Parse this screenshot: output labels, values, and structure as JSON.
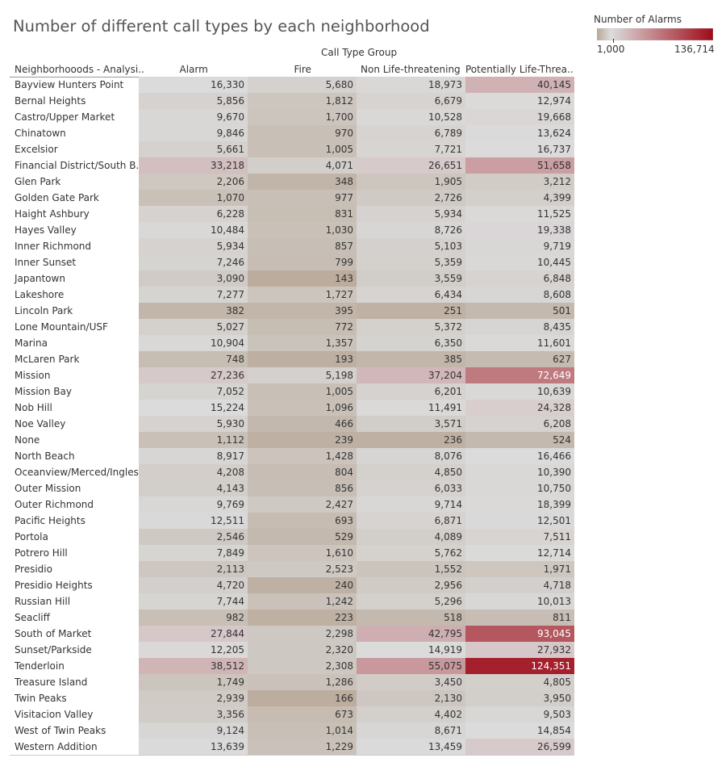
{
  "chart_data": {
    "type": "heatmap",
    "title": "Number of different call types by each neighborhood",
    "column_group_label": "Call Type Group",
    "row_header_label": "Neighborhooods - Analysi..",
    "columns": [
      "Alarm",
      "Fire",
      "Non Life-threatening",
      "Potentially Life-Threa.."
    ],
    "legend": {
      "title": "Number of Alarms",
      "min_label": "1,000",
      "max_label": "136,714",
      "min": 1000,
      "max": 136714,
      "colors": [
        "#b8a898",
        "#dcdcdc",
        "#9e0b18"
      ]
    },
    "rows": [
      {
        "name": "Bayview Hunters Point",
        "values": [
          16330,
          5680,
          18973,
          40145
        ]
      },
      {
        "name": "Bernal Heights",
        "values": [
          5856,
          1812,
          6679,
          12974
        ]
      },
      {
        "name": "Castro/Upper Market",
        "values": [
          9670,
          1700,
          10528,
          19668
        ]
      },
      {
        "name": "Chinatown",
        "values": [
          9846,
          970,
          6789,
          13624
        ]
      },
      {
        "name": "Excelsior",
        "values": [
          5661,
          1005,
          7721,
          16737
        ]
      },
      {
        "name": "Financial District/South B..",
        "values": [
          33218,
          4071,
          26651,
          51658
        ]
      },
      {
        "name": "Glen Park",
        "values": [
          2206,
          348,
          1905,
          3212
        ]
      },
      {
        "name": "Golden Gate Park",
        "values": [
          1070,
          977,
          2726,
          4399
        ]
      },
      {
        "name": "Haight Ashbury",
        "values": [
          6228,
          831,
          5934,
          11525
        ]
      },
      {
        "name": "Hayes Valley",
        "values": [
          10484,
          1030,
          8726,
          19338
        ]
      },
      {
        "name": "Inner Richmond",
        "values": [
          5934,
          857,
          5103,
          9719
        ]
      },
      {
        "name": "Inner Sunset",
        "values": [
          7246,
          799,
          5359,
          10445
        ]
      },
      {
        "name": "Japantown",
        "values": [
          3090,
          143,
          3559,
          6848
        ]
      },
      {
        "name": "Lakeshore",
        "values": [
          7277,
          1727,
          6434,
          8608
        ]
      },
      {
        "name": "Lincoln Park",
        "values": [
          382,
          395,
          251,
          501
        ]
      },
      {
        "name": "Lone Mountain/USF",
        "values": [
          5027,
          772,
          5372,
          8435
        ]
      },
      {
        "name": "Marina",
        "values": [
          10904,
          1357,
          6350,
          11601
        ]
      },
      {
        "name": "McLaren Park",
        "values": [
          748,
          193,
          385,
          627
        ]
      },
      {
        "name": "Mission",
        "values": [
          27236,
          5198,
          37204,
          72649
        ]
      },
      {
        "name": "Mission Bay",
        "values": [
          7052,
          1005,
          6201,
          10639
        ]
      },
      {
        "name": "Nob Hill",
        "values": [
          15224,
          1096,
          11491,
          24328
        ]
      },
      {
        "name": "Noe Valley",
        "values": [
          5930,
          466,
          3571,
          6208
        ]
      },
      {
        "name": "None",
        "values": [
          1112,
          239,
          236,
          524
        ]
      },
      {
        "name": "North Beach",
        "values": [
          8917,
          1428,
          8076,
          16466
        ]
      },
      {
        "name": "Oceanview/Merced/Ingles..",
        "values": [
          4208,
          804,
          4850,
          10390
        ]
      },
      {
        "name": "Outer Mission",
        "values": [
          4143,
          856,
          6033,
          10750
        ]
      },
      {
        "name": "Outer Richmond",
        "values": [
          9769,
          2427,
          9714,
          18399
        ]
      },
      {
        "name": "Pacific Heights",
        "values": [
          12511,
          693,
          6871,
          12501
        ]
      },
      {
        "name": "Portola",
        "values": [
          2546,
          529,
          4089,
          7511
        ]
      },
      {
        "name": "Potrero Hill",
        "values": [
          7849,
          1610,
          5762,
          12714
        ]
      },
      {
        "name": "Presidio",
        "values": [
          2113,
          2523,
          1552,
          1971
        ]
      },
      {
        "name": "Presidio Heights",
        "values": [
          4720,
          240,
          2956,
          4718
        ]
      },
      {
        "name": "Russian Hill",
        "values": [
          7744,
          1242,
          5296,
          10013
        ]
      },
      {
        "name": "Seacliff",
        "values": [
          982,
          223,
          518,
          811
        ]
      },
      {
        "name": "South of Market",
        "values": [
          27844,
          2298,
          42795,
          93045
        ]
      },
      {
        "name": "Sunset/Parkside",
        "values": [
          12205,
          2320,
          14919,
          27932
        ]
      },
      {
        "name": "Tenderloin",
        "values": [
          38512,
          2308,
          55075,
          124351
        ]
      },
      {
        "name": "Treasure Island",
        "values": [
          1749,
          1286,
          3450,
          4805
        ]
      },
      {
        "name": "Twin Peaks",
        "values": [
          2939,
          166,
          2130,
          3950
        ]
      },
      {
        "name": "Visitacion Valley",
        "values": [
          3356,
          673,
          4402,
          9503
        ]
      },
      {
        "name": "West of Twin Peaks",
        "values": [
          9124,
          1014,
          8671,
          14854
        ]
      },
      {
        "name": "Western Addition",
        "values": [
          13639,
          1229,
          13459,
          26599
        ]
      }
    ]
  }
}
